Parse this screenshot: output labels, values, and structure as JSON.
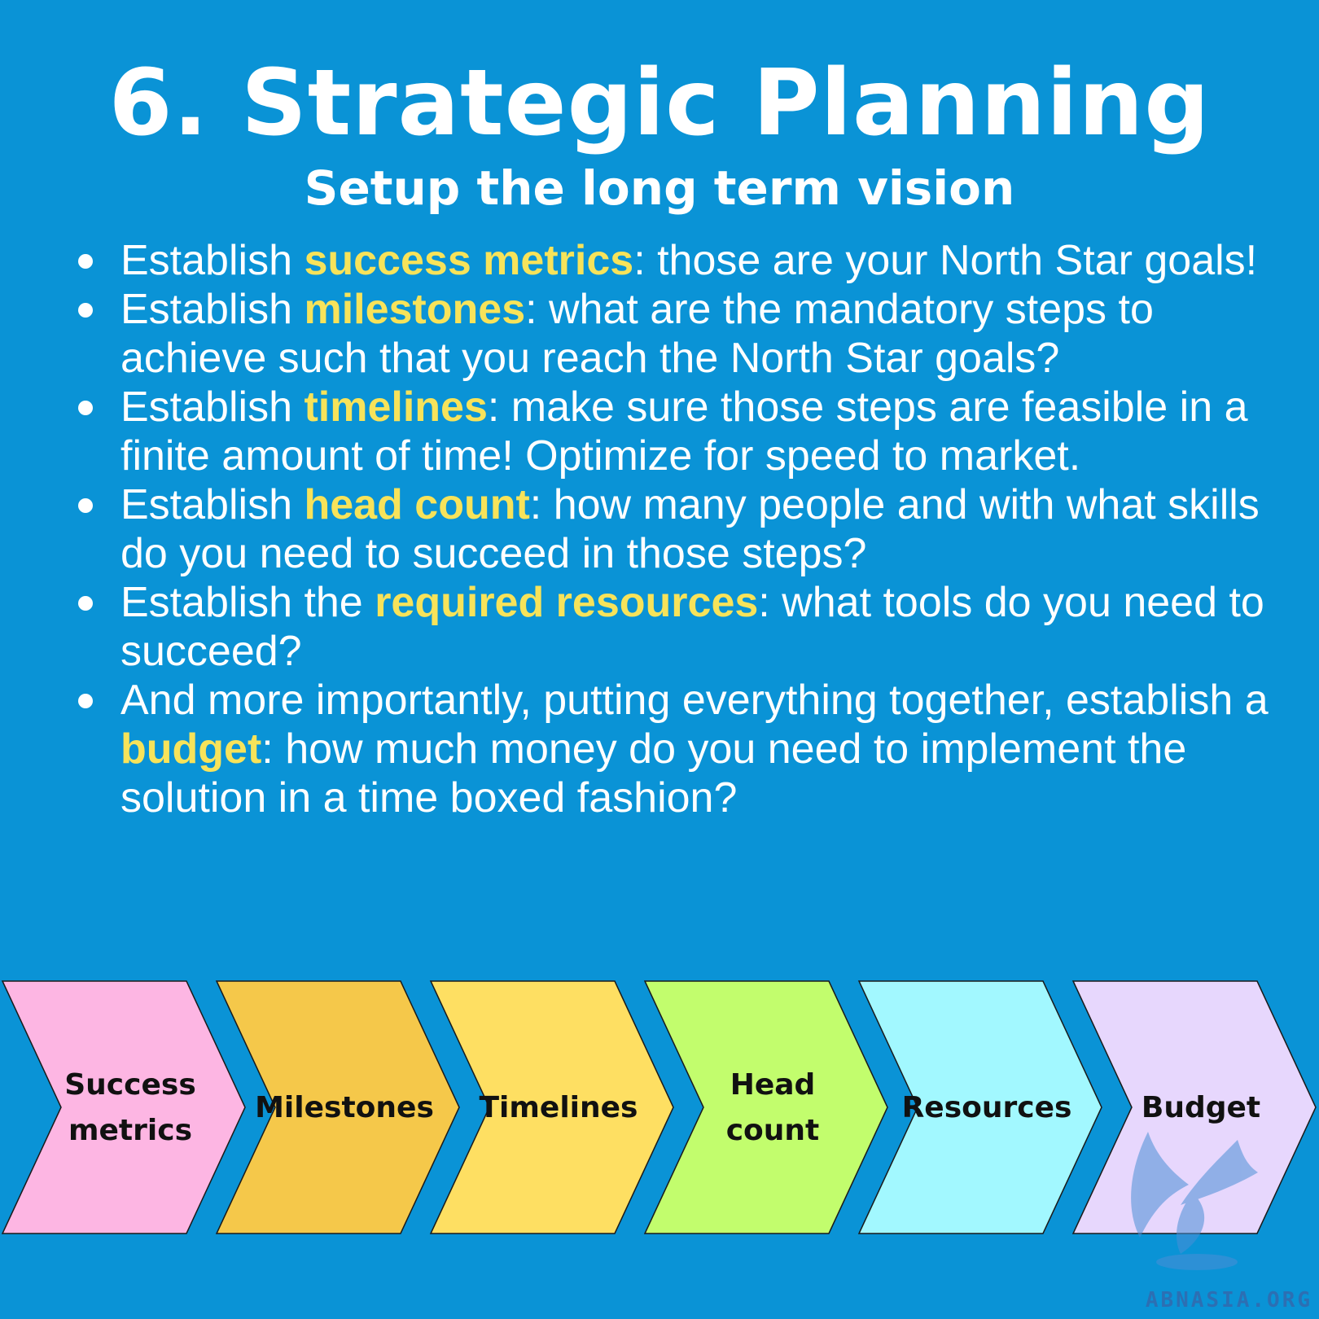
{
  "title": "6. Strategic Planning",
  "subtitle": "Setup the long term vision",
  "bullets": [
    {
      "pre": "Establish ",
      "highlight": "success metrics",
      "post": ": those are your North Star goals!"
    },
    {
      "pre": "Establish ",
      "highlight": "milestones",
      "post": ": what are the mandatory steps to achieve such that you reach the North Star goals?"
    },
    {
      "pre": "Establish ",
      "highlight": "timelines",
      "post": ": make sure those steps are feasible in a finite amount of time! Optimize for speed to market."
    },
    {
      "pre": "Establish ",
      "highlight": "head count",
      "post": ": how many people and with what skills do you need to succeed in those steps?"
    },
    {
      "pre": "Establish the ",
      "highlight": "required resources",
      "post": ": what tools do you need to succeed?"
    },
    {
      "pre": "And more importantly, putting everything together, establish a ",
      "highlight": "budget",
      "post": ": how much money do you need to implement the solution in a time boxed fashion?"
    }
  ],
  "steps": [
    {
      "lines": [
        "Success",
        "metrics"
      ],
      "color": "#fdb6e3"
    },
    {
      "lines": [
        "Milestones"
      ],
      "color": "#f5c84a"
    },
    {
      "lines": [
        "Timelines"
      ],
      "color": "#fedf62"
    },
    {
      "lines": [
        "Head",
        "count"
      ],
      "color": "#c2fd6d"
    },
    {
      "lines": [
        "Resources"
      ],
      "color": "#a2f8ff"
    },
    {
      "lines": [
        "Budget"
      ],
      "color": "#e7d7fd"
    }
  ],
  "colors": {
    "background": "#0a93d6",
    "highlight": "#f7e35a",
    "text": "#ffffff"
  },
  "watermark": "ABNASIA.ORG"
}
